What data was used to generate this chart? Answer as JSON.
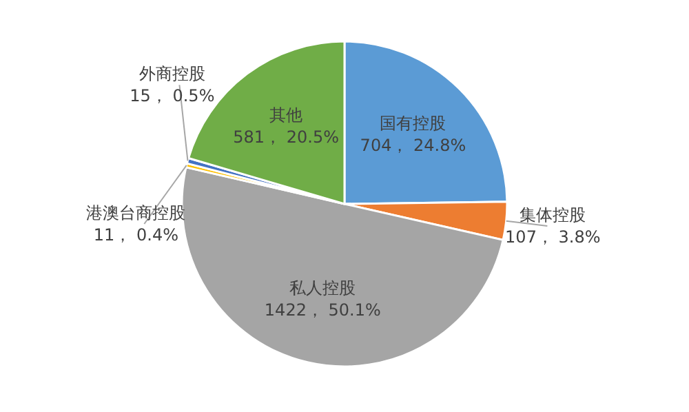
{
  "chart_data": {
    "type": "pie",
    "categories": [
      "国有控股",
      "集体控股",
      "私人控股",
      "港澳台商控股",
      "外商控股",
      "其他"
    ],
    "values": [
      704,
      107,
      1422,
      11,
      15,
      581
    ],
    "colors": [
      "#5b9bd5",
      "#ed7d31",
      "#a5a5a5",
      "#ffc000",
      "#4472c4",
      "#70ad47"
    ],
    "value_labels": [
      "704， 24.8%",
      "107， 3.8%",
      "1422， 50.1%",
      "11， 0.4%",
      "15， 0.5%",
      "581， 20.5%"
    ]
  }
}
